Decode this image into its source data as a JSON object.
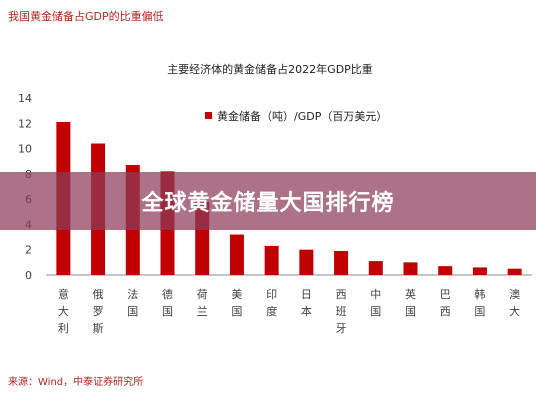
{
  "header": {
    "title": "我国黄金储备占GDP的比重偏低"
  },
  "footer": {
    "source": "来源：Wind，中泰证券研究所"
  },
  "overlay": {
    "banner_text": "全球黄金储量大国排行榜"
  },
  "colors": {
    "bar": "#c00000",
    "accent_text": "#b0261f",
    "axis_text": "#404040",
    "banner_bg": "rgba(140, 60, 90, 0.72)"
  },
  "chart_data": {
    "type": "bar",
    "title": "主要经济体的黄金储备占2022年GDP比重",
    "legend": {
      "label": "黄金储备（吨）/GDP（百万美元）",
      "placement": "top-right"
    },
    "categories": [
      "意大利",
      "俄罗斯",
      "法国",
      "德国",
      "荷兰",
      "美国",
      "印度",
      "日本",
      "西班牙",
      "中国",
      "英国",
      "巴西",
      "韩国",
      "澳大"
    ],
    "series": [
      {
        "name": "黄金储备（吨）/GDP（百万美元）",
        "values": [
          12.1,
          10.4,
          8.7,
          8.2,
          5.8,
          3.2,
          2.3,
          2.0,
          1.9,
          1.1,
          1.0,
          0.7,
          0.6,
          0.5
        ]
      }
    ],
    "ylim": [
      0,
      14
    ],
    "yticks": [
      0,
      2,
      4,
      6,
      8,
      10,
      12,
      14
    ],
    "grid": false
  }
}
